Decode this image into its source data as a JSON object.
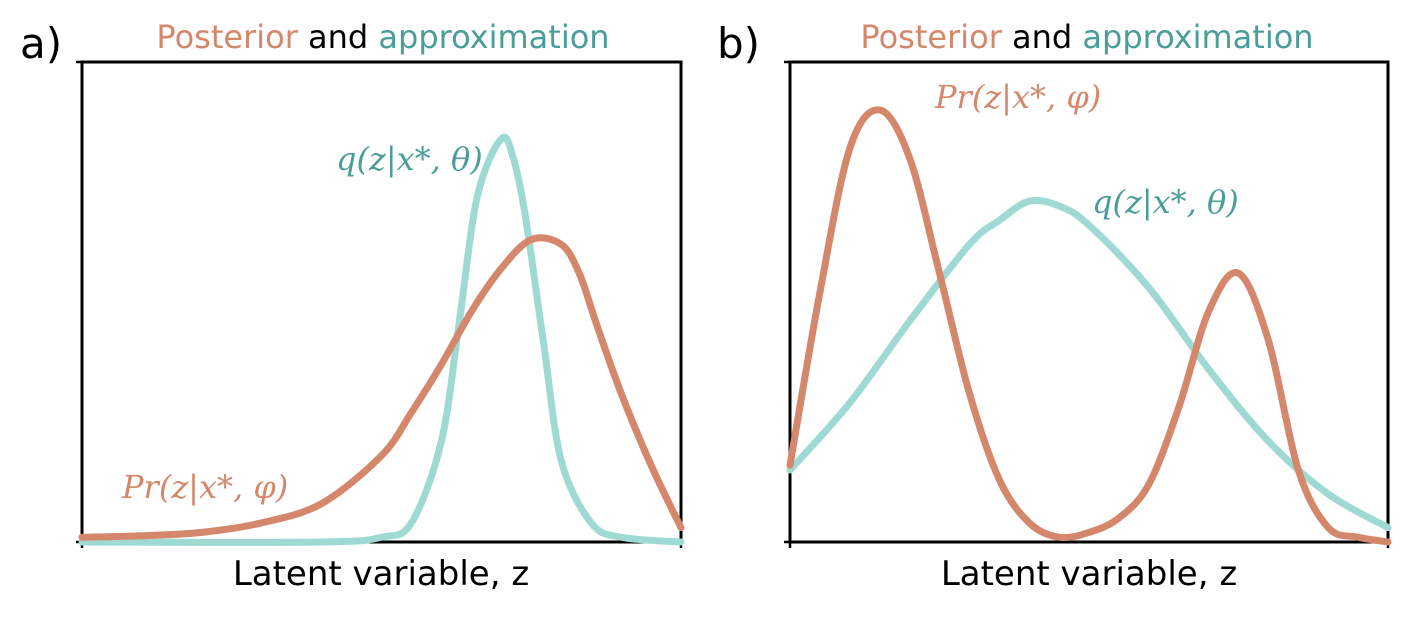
{
  "figure": {
    "colors": {
      "posterior": "#d4876a",
      "approximation": "#9fd9d3",
      "approximation_text": "#4a9e97",
      "axis": "#000000"
    }
  },
  "chart_data": [
    {
      "type": "line",
      "panel_label": "a)",
      "title": {
        "part1": "Posterior",
        "part2": "and",
        "part3": "approximation"
      },
      "xlabel": "Latent variable, z",
      "ylabel": "",
      "xlim": [
        0,
        1
      ],
      "ylim": [
        0,
        1
      ],
      "series": [
        {
          "name": "q(z|x*, θ)",
          "role": "approximation",
          "x": [
            0.0,
            0.4,
            0.5,
            0.55,
            0.6,
            0.63,
            0.66,
            0.7,
            0.72,
            0.74,
            0.77,
            0.8,
            0.85,
            0.9,
            1.0
          ],
          "y": [
            0.0,
            0.0,
            0.01,
            0.04,
            0.21,
            0.46,
            0.72,
            0.84,
            0.8,
            0.68,
            0.42,
            0.17,
            0.04,
            0.01,
            0.0
          ]
        },
        {
          "name": "Pr(z|x*, φ)",
          "role": "posterior",
          "x": [
            0.0,
            0.1,
            0.2,
            0.3,
            0.4,
            0.5,
            0.55,
            0.6,
            0.65,
            0.7,
            0.75,
            0.8,
            0.83,
            0.86,
            0.9,
            0.95,
            1.0
          ],
          "y": [
            0.01,
            0.013,
            0.02,
            0.04,
            0.08,
            0.18,
            0.27,
            0.37,
            0.48,
            0.57,
            0.63,
            0.62,
            0.56,
            0.45,
            0.31,
            0.16,
            0.03
          ]
        }
      ]
    },
    {
      "type": "line",
      "panel_label": "b)",
      "title": {
        "part1": "Posterior",
        "part2": "and",
        "part3": "approximation"
      },
      "xlabel": "Latent variable, z",
      "ylabel": "",
      "xlim": [
        0,
        1
      ],
      "ylim": [
        0,
        1
      ],
      "series": [
        {
          "name": "q(z|x*, θ)",
          "role": "approximation",
          "x": [
            0.0,
            0.1,
            0.2,
            0.3,
            0.35,
            0.4,
            0.45,
            0.5,
            0.6,
            0.7,
            0.8,
            0.9,
            1.0
          ],
          "y": [
            0.15,
            0.29,
            0.46,
            0.62,
            0.67,
            0.71,
            0.7,
            0.66,
            0.53,
            0.36,
            0.21,
            0.1,
            0.03
          ]
        },
        {
          "name": "Pr(z|x*, φ)",
          "role": "posterior",
          "x": [
            0.0,
            0.05,
            0.1,
            0.15,
            0.2,
            0.25,
            0.3,
            0.35,
            0.4,
            0.45,
            0.5,
            0.55,
            0.6,
            0.65,
            0.7,
            0.75,
            0.8,
            0.85,
            0.9,
            0.95,
            1.0
          ],
          "y": [
            0.16,
            0.52,
            0.82,
            0.9,
            0.8,
            0.56,
            0.31,
            0.13,
            0.04,
            0.01,
            0.02,
            0.05,
            0.12,
            0.28,
            0.48,
            0.56,
            0.42,
            0.15,
            0.03,
            0.01,
            0.0
          ]
        }
      ]
    }
  ]
}
